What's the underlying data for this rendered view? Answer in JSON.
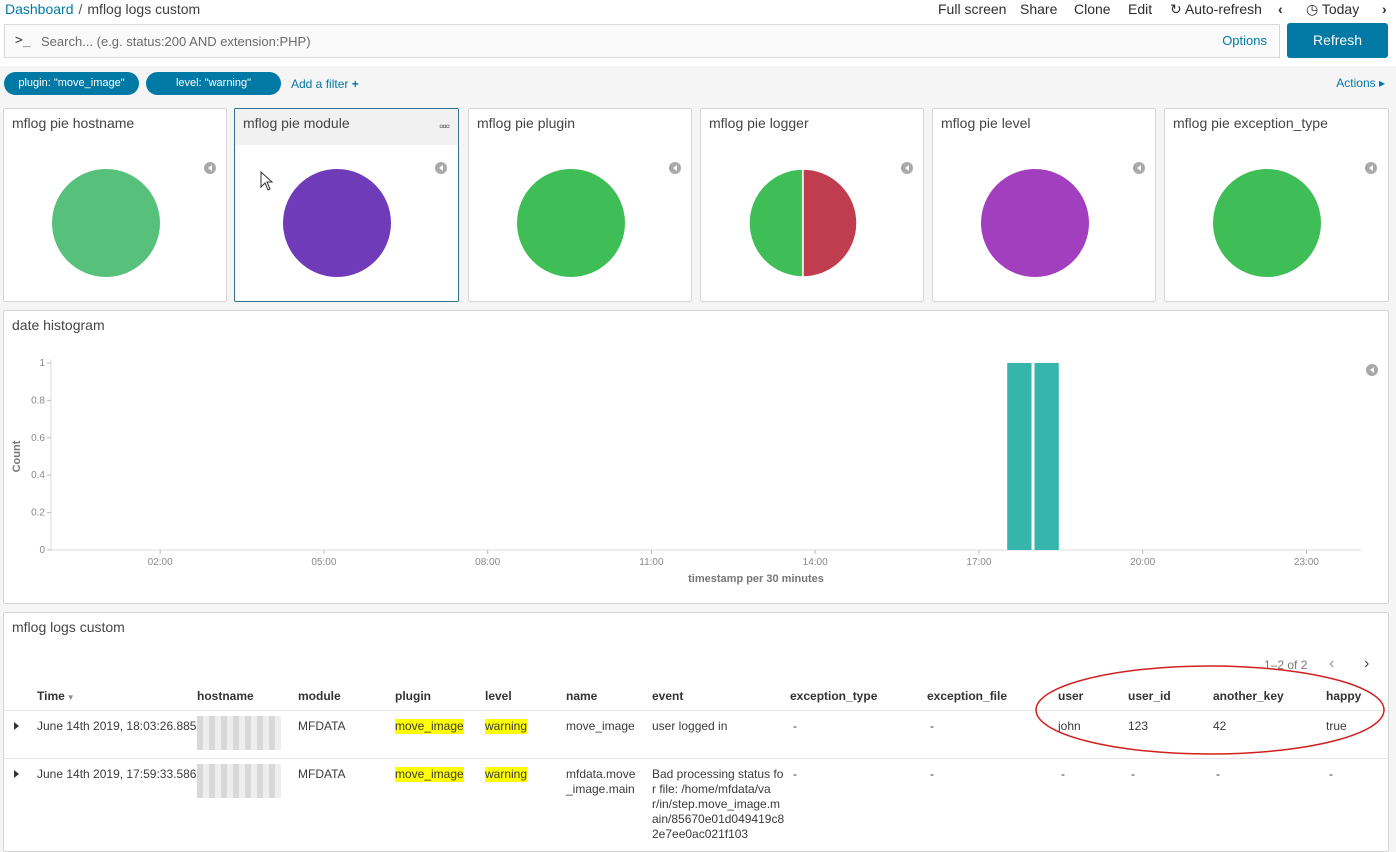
{
  "breadcrumb": {
    "root": "Dashboard",
    "current": "mflog logs custom"
  },
  "topmenu": {
    "fullscreen": "Full screen",
    "share": "Share",
    "clone": "Clone",
    "edit": "Edit",
    "autorefresh": "Auto-refresh",
    "today": "Today"
  },
  "search": {
    "prompt": ">_",
    "placeholder": "Search... (e.g. status:200 AND extension:PHP)",
    "options": "Options",
    "refresh": "Refresh"
  },
  "filters": {
    "plugin": "plugin: \"move_image\"",
    "level": "level: \"warning\"",
    "add": "Add a filter",
    "actions": "Actions"
  },
  "panels": {
    "hostname": "mflog pie hostname",
    "module": "mflog pie module",
    "plugin": "mflog pie plugin",
    "logger": "mflog pie logger",
    "level": "mflog pie level",
    "exception_type": "mflog pie exception_type",
    "histogram": "date histogram",
    "logs": "mflog logs custom"
  },
  "pie_colors": {
    "hostname": [
      "#57c17b"
    ],
    "module": [
      "#6f3bb8"
    ],
    "plugin": [
      "#3fbd56"
    ],
    "logger": [
      "#3fbd56",
      "#bf3d4f"
    ],
    "level": [
      "#a23fbf"
    ],
    "exception_type": [
      "#3fbd56"
    ]
  },
  "chart_data": {
    "type": "bar",
    "title": "date histogram",
    "xlabel": "timestamp per 30 minutes",
    "ylabel": "Count",
    "ylim": [
      0,
      1
    ],
    "yticks": [
      "0",
      "0.2",
      "0.4",
      "0.6",
      "0.8",
      "1"
    ],
    "xticks": [
      "02:00",
      "05:00",
      "08:00",
      "11:00",
      "14:00",
      "17:00",
      "20:00",
      "23:00"
    ],
    "series": [
      {
        "values": [
          {
            "x": "17:30",
            "y": 1
          },
          {
            "x": "18:00",
            "y": 1
          }
        ]
      }
    ],
    "bar_color": "#36b5ad"
  },
  "table": {
    "pager": "1–2 of 2",
    "columns": [
      "Time",
      "hostname",
      "module",
      "plugin",
      "level",
      "name",
      "event",
      "exception_type",
      "exception_file",
      "user",
      "user_id",
      "another_key",
      "happy"
    ],
    "rows": [
      {
        "time": "June 14th 2019, 18:03:26.885",
        "module": "MFDATA",
        "plugin": "move_image",
        "level": "warning",
        "name": "move_image",
        "event": "user logged in",
        "exception_type": "-",
        "exception_file": "-",
        "user": "john",
        "user_id": "123",
        "another_key": "42",
        "happy": "true"
      },
      {
        "time": "June 14th 2019, 17:59:33.586",
        "module": "MFDATA",
        "plugin": "move_image",
        "level": "warning",
        "name_l1": "mfdata.move",
        "name_l2": "_image.main",
        "event_l1": "Bad processing status fo",
        "event_l2": "r file: /home/mfdata/va",
        "event_l3": "r/in/step.move_image.m",
        "event_l4": "ain/85670e01d049419c8",
        "event_l5": "2e7ee0ac021f103",
        "exception_type": "-",
        "exception_file": "-",
        "user": "-",
        "user_id": "-",
        "another_key": "-",
        "happy": "-"
      }
    ]
  }
}
